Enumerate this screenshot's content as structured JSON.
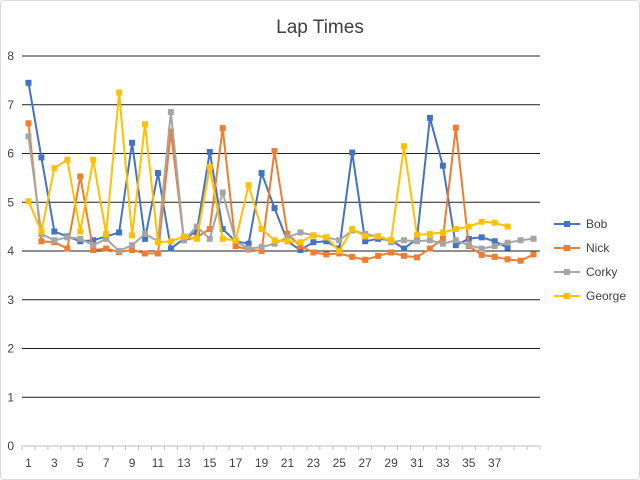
{
  "chart_data": {
    "type": "line",
    "title": "Lap Times",
    "xlabel": "",
    "ylabel": "",
    "ylim": [
      0,
      8
    ],
    "yticks": [
      0,
      1,
      2,
      3,
      4,
      5,
      6,
      7,
      8
    ],
    "x": [
      1,
      2,
      3,
      4,
      5,
      6,
      7,
      8,
      9,
      10,
      11,
      12,
      13,
      14,
      15,
      16,
      17,
      18,
      19,
      20,
      21,
      22,
      23,
      24,
      25,
      26,
      27,
      28,
      29,
      30,
      31,
      32,
      33,
      34,
      35,
      36,
      37,
      38,
      39,
      40
    ],
    "xtick_labels": [
      "1",
      "3",
      "5",
      "7",
      "9",
      "11",
      "13",
      "15",
      "17",
      "19",
      "21",
      "23",
      "25",
      "27",
      "29",
      "31",
      "33",
      "35",
      "37"
    ],
    "grid": "horizontal",
    "legend_position": "right",
    "series": [
      {
        "name": "Bob",
        "color": "#4472c4",
        "values": [
          7.45,
          5.92,
          4.4,
          4.3,
          4.2,
          4.22,
          4.3,
          4.38,
          6.22,
          4.25,
          5.6,
          4.05,
          4.25,
          4.4,
          6.03,
          4.45,
          4.2,
          4.15,
          5.6,
          4.88,
          4.2,
          4.02,
          4.18,
          4.2,
          4.05,
          6.02,
          4.2,
          4.25,
          4.22,
          4.05,
          4.25,
          6.73,
          5.75,
          4.12,
          4.25,
          4.28,
          4.2,
          4.07,
          null,
          null
        ]
      },
      {
        "name": "Nick",
        "color": "#ed7d31",
        "values": [
          6.62,
          4.2,
          4.18,
          4.05,
          5.53,
          4.02,
          4.05,
          3.98,
          4.02,
          3.95,
          3.95,
          6.45,
          4.22,
          4.28,
          4.45,
          6.52,
          4.1,
          4.03,
          4.0,
          6.05,
          4.35,
          4.1,
          3.97,
          3.93,
          3.95,
          3.88,
          3.82,
          3.9,
          3.97,
          3.9,
          3.87,
          4.05,
          4.25,
          6.53,
          4.1,
          3.92,
          3.88,
          3.83,
          3.8,
          3.93
        ]
      },
      {
        "name": "Corky",
        "color": "#a5a5a5",
        "values": [
          6.35,
          4.35,
          4.22,
          4.28,
          4.25,
          4.12,
          4.25,
          4.0,
          4.12,
          4.35,
          4.2,
          6.85,
          4.22,
          4.5,
          4.25,
          5.2,
          4.2,
          4.05,
          4.08,
          4.15,
          4.28,
          4.38,
          4.32,
          4.28,
          4.22,
          4.42,
          4.35,
          4.3,
          4.18,
          4.22,
          4.2,
          4.22,
          4.15,
          4.22,
          4.12,
          4.05,
          4.1,
          4.17,
          4.22,
          4.25
        ]
      },
      {
        "name": "George",
        "color": "#ffc000",
        "values": [
          5.02,
          4.4,
          5.7,
          5.87,
          4.4,
          5.87,
          4.35,
          7.25,
          4.32,
          6.6,
          4.18,
          4.2,
          4.3,
          4.25,
          5.72,
          4.25,
          4.22,
          5.35,
          4.45,
          4.22,
          4.2,
          4.18,
          4.32,
          4.28,
          4.0,
          4.45,
          4.3,
          4.3,
          4.22,
          6.15,
          4.33,
          4.35,
          4.38,
          4.45,
          4.5,
          4.6,
          4.58,
          4.5,
          null,
          null
        ]
      }
    ]
  }
}
